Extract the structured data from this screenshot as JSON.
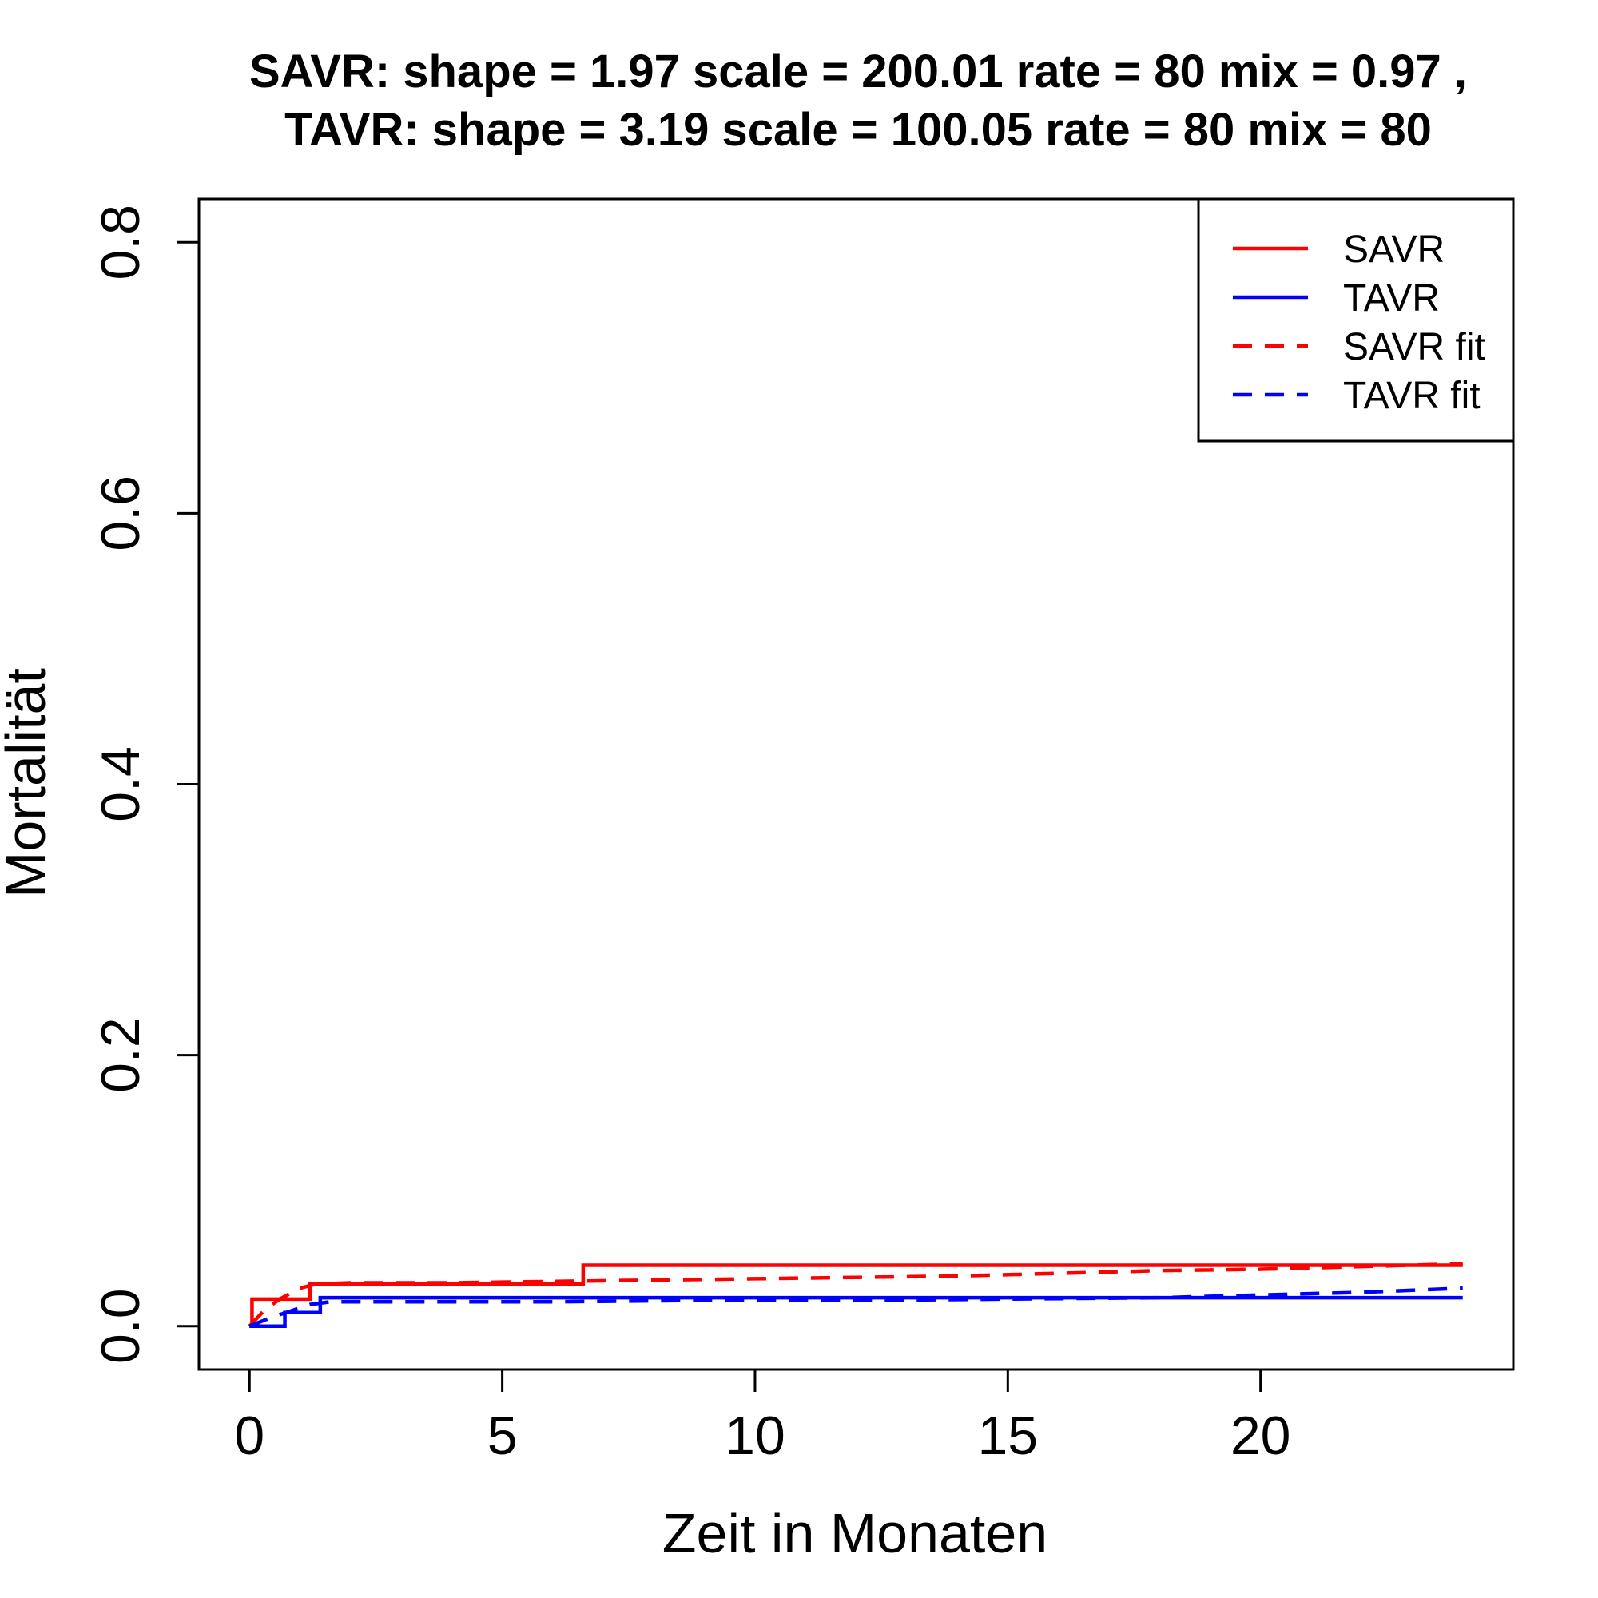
{
  "chart_data": {
    "type": "line",
    "title": [
      "SAVR:  shape =  1.97   scale =  200.01   rate =  80   mix =  0.97 ,",
      "TAVR:  shape =  3.19   scale =  100.05   rate =  80   mix =  80"
    ],
    "xlabel": "Zeit in Monaten",
    "ylabel": "Mortalität",
    "xlim": [
      -1,
      25
    ],
    "ylim": [
      -0.032,
      0.832
    ],
    "x_ticks": [
      0,
      5,
      10,
      15,
      20
    ],
    "x_tick_labels": [
      "0",
      "5",
      "10",
      "15",
      "20"
    ],
    "y_ticks": [
      0.0,
      0.2,
      0.4,
      0.6,
      0.8
    ],
    "y_tick_labels": [
      "0.0",
      "0.2",
      "0.4",
      "0.6",
      "0.8"
    ],
    "grid": false,
    "legend_position": "top-right",
    "series": [
      {
        "name": "SAVR",
        "color": "#ff0000",
        "style": "solid",
        "step": true,
        "x": [
          0,
          0.05,
          1.2,
          6.6,
          24
        ],
        "y": [
          0,
          0.02,
          0.031,
          0.045,
          0.045
        ]
      },
      {
        "name": "TAVR",
        "color": "#0000ff",
        "style": "solid",
        "step": true,
        "x": [
          0,
          0.7,
          1.4,
          24
        ],
        "y": [
          0,
          0.01,
          0.021,
          0.021
        ]
      },
      {
        "name": "SAVR fit",
        "color": "#ff0000",
        "style": "dashed",
        "step": false,
        "x": [
          0,
          0.3,
          0.6,
          1.0,
          1.3,
          2,
          4,
          6,
          8,
          10,
          12,
          14,
          16,
          18,
          20,
          22,
          24
        ],
        "y": [
          0,
          0.012,
          0.02,
          0.028,
          0.031,
          0.032,
          0.032,
          0.033,
          0.034,
          0.035,
          0.036,
          0.037,
          0.039,
          0.041,
          0.042,
          0.044,
          0.046
        ]
      },
      {
        "name": "TAVR fit",
        "color": "#0000ff",
        "style": "dashed",
        "step": false,
        "x": [
          0,
          0.4,
          0.8,
          1.2,
          1.6,
          3,
          6,
          9,
          12,
          15,
          18,
          20,
          22,
          24
        ],
        "y": [
          0,
          0.006,
          0.011,
          0.016,
          0.018,
          0.018,
          0.018,
          0.019,
          0.019,
          0.02,
          0.021,
          0.023,
          0.025,
          0.028
        ]
      }
    ]
  }
}
